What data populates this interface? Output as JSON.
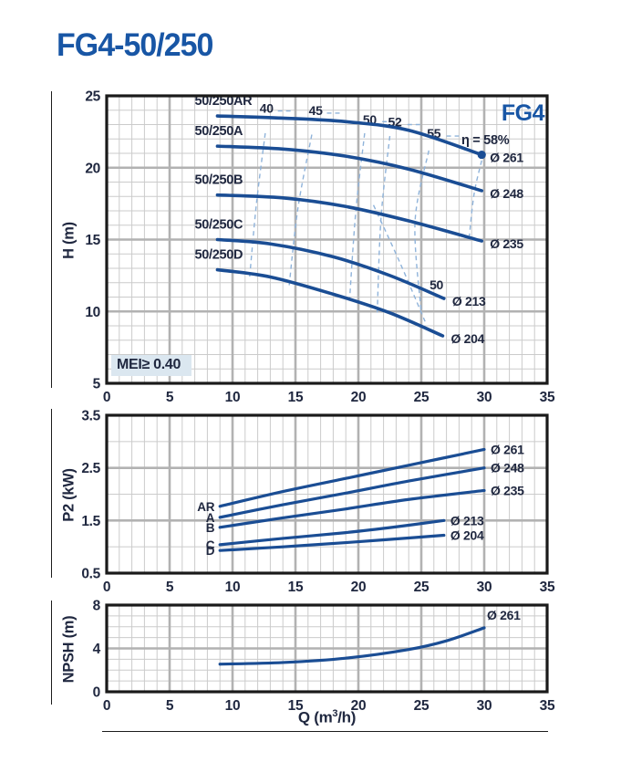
{
  "page": {
    "title": "FG4-50/250"
  },
  "colors": {
    "brand_blue": "#1856a5",
    "curve_blue": "#1a4d94",
    "label_dark": "#202840",
    "eff_dash_blue": "#8fb3da",
    "grid_minor": "#cbcbcb",
    "grid_major": "#b2b2b2",
    "plot_border": "#1a1a1a",
    "mei_bg": "#dbe7f0"
  },
  "xlabel_parts": {
    "pre": "Q (m",
    "sup": "3",
    "post": "/h)"
  },
  "chart_data": [
    {
      "type": "line",
      "name": "head-curves",
      "ylabel": "H (m)",
      "xlabel": "Q (m³/h)",
      "xlim": [
        0,
        35
      ],
      "ylim": [
        5,
        25
      ],
      "x_ticks": [
        0,
        5,
        10,
        15,
        20,
        25,
        30,
        35
      ],
      "y_ticks": [
        25,
        20,
        15,
        10,
        5
      ],
      "annotations": {
        "badge": "FG4",
        "mei": "MEI≥ 0.40",
        "eta": "η = 58%"
      },
      "series": [
        {
          "name": "50/250AR",
          "diameter": "Ø 261",
          "end_dot": true,
          "points": [
            [
              8.8,
              23.6
            ],
            [
              14,
              23.45
            ],
            [
              19,
              23.2
            ],
            [
              24,
              22.6
            ],
            [
              29.8,
              20.9
            ]
          ]
        },
        {
          "name": "50/250A",
          "diameter": "Ø 248",
          "points": [
            [
              8.8,
              21.5
            ],
            [
              14,
              21.3
            ],
            [
              19,
              20.8
            ],
            [
              24,
              19.9
            ],
            [
              29.8,
              18.4
            ]
          ]
        },
        {
          "name": "50/250B",
          "diameter": "Ø 235",
          "points": [
            [
              8.8,
              18.1
            ],
            [
              14,
              17.9
            ],
            [
              19,
              17.3
            ],
            [
              24,
              16.3
            ],
            [
              29.8,
              14.9
            ]
          ]
        },
        {
          "name": "50/250C",
          "diameter": "Ø 213",
          "points": [
            [
              8.8,
              15.0
            ],
            [
              13,
              14.7
            ],
            [
              18,
              13.8
            ],
            [
              22.5,
              12.5
            ],
            [
              26.8,
              10.9
            ]
          ]
        },
        {
          "name": "50/250D",
          "diameter": "Ø 204",
          "points": [
            [
              8.8,
              12.9
            ],
            [
              13,
              12.4
            ],
            [
              18,
              11.2
            ],
            [
              22.5,
              9.9
            ],
            [
              26.7,
              8.3
            ]
          ]
        }
      ],
      "efficiency_lines": [
        {
          "label": "40",
          "label_pos": [
            12.7,
            24.15
          ],
          "segments": [
            [
              [
                13.6,
                23.95
              ],
              [
                14.9,
                23.95
              ]
            ],
            [
              [
                12.6,
                22.4
              ],
              [
                11.9,
                17.5
              ],
              [
                11.35,
                12.3
              ]
            ]
          ]
        },
        {
          "label": "45",
          "label_pos": [
            16.6,
            24.0
          ],
          "segments": [
            [
              [
                17.5,
                23.8
              ],
              [
                18.8,
                23.8
              ]
            ],
            [
              [
                16.3,
                22.3
              ],
              [
                15.2,
                17.2
              ],
              [
                14.5,
                11.8
              ]
            ]
          ]
        },
        {
          "label": "50",
          "label_pos": [
            20.9,
            23.35
          ],
          "segments": [
            [
              [
                21.9,
                23.2
              ],
              [
                23.1,
                23.2
              ]
            ],
            [
              [
                20.5,
                22.4
              ],
              [
                19.8,
                17.0
              ],
              [
                19.3,
                10.8
              ]
            ]
          ]
        },
        {
          "label": "52",
          "label_pos": [
            22.9,
            23.2
          ],
          "segments": [
            [
              [
                23.9,
                23.0
              ],
              [
                24.9,
                23.0
              ]
            ],
            [
              [
                22.5,
                22.2
              ],
              [
                21.8,
                16.5
              ],
              [
                21.5,
                9.9
              ]
            ]
          ]
        },
        {
          "label": "55",
          "label_pos": [
            26.0,
            22.4
          ],
          "segments": [
            [
              [
                27.0,
                22.2
              ],
              [
                28.0,
                22.2
              ]
            ],
            [
              [
                25.6,
                21.2
              ],
              [
                24.5,
                16.2
              ],
              [
                25.0,
                9.9
              ]
            ]
          ]
        },
        {
          "label": "50",
          "label_pos": [
            26.2,
            11.85
          ],
          "segments": [
            [
              [
                21.2,
                17.4
              ],
              [
                23.3,
                13.4
              ],
              [
                25.3,
                9.3
              ]
            ]
          ]
        },
        {
          "label": "",
          "label_pos": null,
          "segments": [
            [
              [
                29.8,
                20.5
              ],
              [
                29.2,
                18.2
              ],
              [
                28.8,
                15.1
              ]
            ]
          ]
        }
      ]
    },
    {
      "type": "line",
      "name": "power-curves",
      "ylabel": "P2 (kW)",
      "xlabel": "Q (m³/h)",
      "xlim": [
        0,
        35
      ],
      "ylim": [
        0.5,
        3.5
      ],
      "x_ticks": [
        0,
        5,
        10,
        15,
        20,
        25,
        30,
        35
      ],
      "y_ticks": [
        3.5,
        2.5,
        1.5,
        0.5
      ],
      "series": [
        {
          "name": "AR",
          "diameter": "Ø 261",
          "points": [
            [
              9,
              1.77
            ],
            [
              14,
              2.05
            ],
            [
              19,
              2.3
            ],
            [
              24,
              2.55
            ],
            [
              30,
              2.85
            ]
          ]
        },
        {
          "name": "A",
          "diameter": "Ø 248",
          "points": [
            [
              9,
              1.56
            ],
            [
              14,
              1.8
            ],
            [
              19,
              2.02
            ],
            [
              24,
              2.25
            ],
            [
              30,
              2.5
            ]
          ]
        },
        {
          "name": "B",
          "diameter": "Ø 235",
          "points": [
            [
              9,
              1.37
            ],
            [
              14,
              1.55
            ],
            [
              19,
              1.72
            ],
            [
              24,
              1.9
            ],
            [
              30,
              2.07
            ]
          ]
        },
        {
          "name": "C",
          "diameter": "Ø 213",
          "points": [
            [
              9,
              1.04
            ],
            [
              14,
              1.16
            ],
            [
              19,
              1.27
            ],
            [
              23,
              1.38
            ],
            [
              26.8,
              1.5
            ]
          ]
        },
        {
          "name": "D",
          "diameter": "Ø 204",
          "points": [
            [
              9,
              0.93
            ],
            [
              14,
              1.0
            ],
            [
              19,
              1.08
            ],
            [
              23,
              1.15
            ],
            [
              26.8,
              1.22
            ]
          ]
        }
      ]
    },
    {
      "type": "line",
      "name": "npsh-curve",
      "ylabel": "NPSH (m)",
      "xlabel": "Q (m³/h)",
      "xlim": [
        0,
        35
      ],
      "ylim": [
        0,
        8
      ],
      "x_ticks": [
        0,
        5,
        10,
        15,
        20,
        25,
        30,
        35
      ],
      "y_ticks": [
        8,
        4,
        0
      ],
      "series": [
        {
          "name": "Ø 261",
          "diameter": "Ø 261",
          "points": [
            [
              9,
              2.55
            ],
            [
              14,
              2.7
            ],
            [
              19,
              3.1
            ],
            [
              24,
              3.9
            ],
            [
              27,
              4.7
            ],
            [
              30,
              5.9
            ]
          ]
        }
      ]
    }
  ]
}
